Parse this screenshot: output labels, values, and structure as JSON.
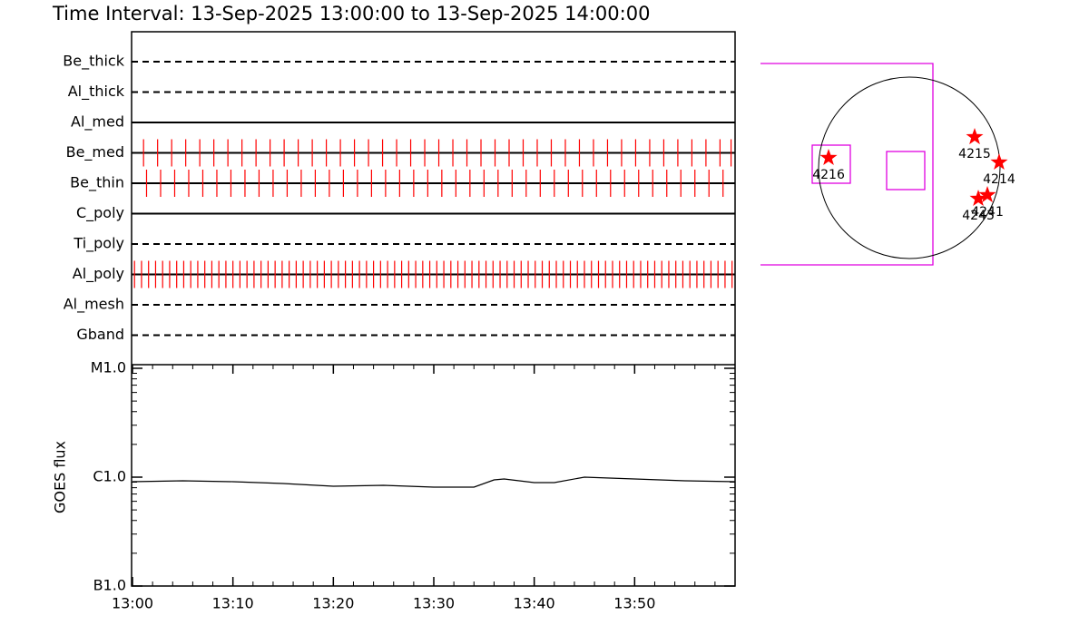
{
  "chart_data": [
    {
      "type": "timeline",
      "title": "Time Interval: 13-Sep-2025 13:00:00 to 13-Sep-2025 14:00:00",
      "rows": [
        {
          "name": "Be_thick",
          "style": "dashed",
          "exposures": []
        },
        {
          "name": "Al_thick",
          "style": "dashed",
          "exposures": []
        },
        {
          "name": "Al_med",
          "style": "solid",
          "exposures": []
        },
        {
          "name": "Be_med",
          "style": "solid",
          "exposures": [
            1.1,
            2.5,
            3.9,
            5.3,
            6.7,
            8.1,
            9.5,
            10.9,
            12.3,
            13.7,
            15.1,
            16.5,
            17.9,
            19.3,
            20.7,
            22.1,
            23.5,
            24.9,
            26.3,
            27.7,
            29.1,
            30.5,
            31.9,
            33.3,
            34.7,
            36.1,
            37.5,
            38.9,
            40.3,
            41.7,
            43.1,
            44.5,
            45.9,
            47.3,
            48.7,
            50.1,
            51.5,
            52.9,
            54.3,
            55.7,
            57.1,
            58.5,
            59.6
          ]
        },
        {
          "name": "Be_thin",
          "style": "solid",
          "exposures": [
            1.4,
            2.8,
            4.2,
            5.6,
            7.0,
            8.4,
            9.8,
            11.2,
            12.6,
            14.0,
            15.4,
            16.8,
            18.2,
            19.6,
            21.0,
            22.4,
            23.8,
            25.2,
            26.6,
            28.0,
            29.4,
            30.8,
            32.2,
            33.6,
            35.0,
            36.4,
            37.8,
            39.2,
            40.6,
            42.0,
            43.4,
            44.8,
            46.2,
            47.6,
            49.0,
            50.4,
            51.8,
            53.2,
            54.6,
            56.0,
            57.4,
            58.8
          ]
        },
        {
          "name": "C_poly",
          "style": "solid",
          "exposures": []
        },
        {
          "name": "Ti_poly",
          "style": "dashed",
          "exposures": []
        },
        {
          "name": "Al_poly",
          "style": "solid",
          "exposures": [
            0.2,
            0.9,
            1.6,
            2.3,
            3.0,
            3.7,
            4.4,
            5.1,
            5.8,
            6.5,
            7.2,
            7.9,
            8.6,
            9.3,
            10.0,
            10.7,
            11.4,
            12.1,
            12.8,
            13.5,
            14.2,
            14.9,
            15.6,
            16.3,
            17.0,
            17.7,
            18.4,
            19.1,
            19.8,
            20.5,
            21.2,
            21.9,
            22.6,
            23.3,
            24.0,
            24.7,
            25.4,
            26.1,
            26.8,
            27.5,
            28.2,
            28.9,
            29.6,
            30.3,
            31.0,
            31.7,
            32.4,
            33.1,
            33.8,
            34.5,
            35.2,
            35.9,
            36.6,
            37.3,
            38.0,
            38.7,
            39.4,
            40.1,
            40.8,
            41.5,
            42.2,
            42.9,
            43.6,
            44.3,
            45.0,
            45.7,
            46.4,
            47.1,
            47.8,
            48.5,
            49.2,
            49.9,
            50.6,
            51.3,
            52.0,
            52.7,
            53.4,
            54.1,
            54.8,
            55.5,
            56.2,
            56.9,
            57.6,
            58.3,
            59.0,
            59.7
          ]
        },
        {
          "name": "Al_mesh",
          "style": "dashed",
          "exposures": []
        },
        {
          "name": "Gband",
          "style": "dashed",
          "exposures": []
        }
      ],
      "exposure_color": "#ff0000"
    },
    {
      "type": "line",
      "y_label": "GOES flux",
      "x": [
        0,
        5,
        10,
        15,
        20,
        25,
        30,
        34,
        36,
        37,
        40,
        42,
        45,
        50,
        55,
        60
      ],
      "values": [
        9.08e-07,
        9.26e-07,
        9.08e-07,
        8.75e-07,
        8.25e-07,
        8.41e-07,
        8.1e-07,
        8.1e-07,
        9.44e-07,
        9.62e-07,
        8.91e-07,
        8.91e-07,
        1e-06,
        9.62e-07,
        9.26e-07,
        9.08e-07
      ],
      "color": "#000000",
      "log_scale": true,
      "xlim": [
        0,
        60
      ],
      "xticks": [
        {
          "value": 0,
          "label": "13:00"
        },
        {
          "value": 10,
          "label": "13:10"
        },
        {
          "value": 20,
          "label": "13:20"
        },
        {
          "value": 30,
          "label": "13:30"
        },
        {
          "value": 40,
          "label": "13:40"
        },
        {
          "value": 50,
          "label": "13:50"
        }
      ],
      "ylim": [
        1e-07,
        1e-05
      ],
      "yticks": [
        {
          "value": 1e-05,
          "label": "M1.0"
        },
        {
          "value": 1e-06,
          "label": "C1.0"
        },
        {
          "value": 1e-07,
          "label": "B1.0"
        }
      ]
    },
    {
      "type": "disk",
      "radius": 960,
      "xlim": [
        -1200,
        1200
      ],
      "ylim": [
        -1200,
        1200
      ],
      "color": "#ff0000",
      "regions": [
        {
          "label": "4216",
          "x": -854,
          "y": 106
        },
        {
          "label": "4215",
          "x": 691,
          "y": 326
        },
        {
          "label": "4214",
          "x": 950,
          "y": 58
        },
        {
          "label": "4243",
          "x": 730,
          "y": -326
        },
        {
          "label": "4241",
          "x": 826,
          "y": -288
        }
      ]
    }
  ]
}
